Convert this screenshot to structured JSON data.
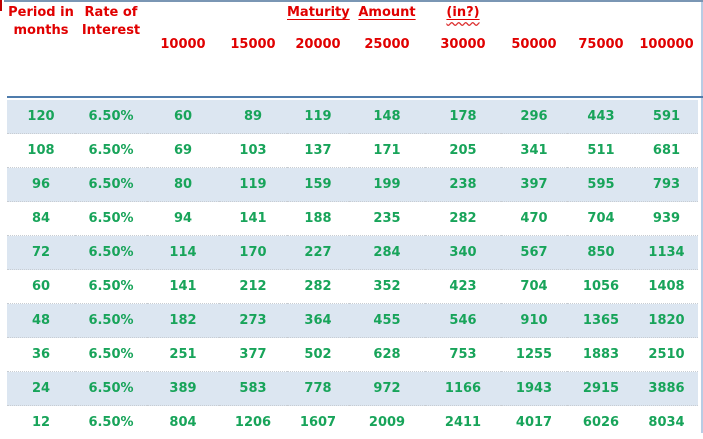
{
  "page": {
    "header": {
      "period_label": "Period in months",
      "rate_label": "Rate of Interest",
      "maturity_word": "Maturity",
      "amount_word": "Amount",
      "currency_note": "(in?)"
    },
    "colors": {
      "header_text_red": "#e00000",
      "value_text_green": "#18a45a",
      "row_band_blue": "#dce6f1",
      "header_separator_blue": "#4f7cac",
      "top_border_blue": "#7a96b4",
      "right_border_blue": "#b8cce4",
      "red_tick": "#c00000"
    }
  },
  "chart_data": {
    "type": "table",
    "title": "Maturity Amount (in?)",
    "columns": [
      "Period in months",
      "Rate of Interest",
      "10000",
      "15000",
      "20000",
      "25000",
      "30000",
      "50000",
      "75000",
      "100000"
    ],
    "amount_columns": [
      "10000",
      "15000",
      "20000",
      "25000",
      "30000",
      "50000",
      "75000",
      "100000"
    ],
    "rows": [
      {
        "period": "120",
        "rate": "6.50%",
        "values": [
          "60",
          "89",
          "119",
          "148",
          "178",
          "296",
          "443",
          "591"
        ]
      },
      {
        "period": "108",
        "rate": "6.50%",
        "values": [
          "69",
          "103",
          "137",
          "171",
          "205",
          "341",
          "511",
          "681"
        ]
      },
      {
        "period": "96",
        "rate": "6.50%",
        "values": [
          "80",
          "119",
          "159",
          "199",
          "238",
          "397",
          "595",
          "793"
        ]
      },
      {
        "period": "84",
        "rate": "6.50%",
        "values": [
          "94",
          "141",
          "188",
          "235",
          "282",
          "470",
          "704",
          "939"
        ]
      },
      {
        "period": "72",
        "rate": "6.50%",
        "values": [
          "114",
          "170",
          "227",
          "284",
          "340",
          "567",
          "850",
          "1134"
        ]
      },
      {
        "period": "60",
        "rate": "6.50%",
        "values": [
          "141",
          "212",
          "282",
          "352",
          "423",
          "704",
          "1056",
          "1408"
        ]
      },
      {
        "period": "48",
        "rate": "6.50%",
        "values": [
          "182",
          "273",
          "364",
          "455",
          "546",
          "910",
          "1365",
          "1820"
        ]
      },
      {
        "period": "36",
        "rate": "6.50%",
        "values": [
          "251",
          "377",
          "502",
          "628",
          "753",
          "1255",
          "1883",
          "2510"
        ]
      },
      {
        "period": "24",
        "rate": "6.50%",
        "values": [
          "389",
          "583",
          "778",
          "972",
          "1166",
          "1943",
          "2915",
          "3886"
        ]
      },
      {
        "period": "12",
        "rate": "6.50%",
        "values": [
          "804",
          "1206",
          "1607",
          "2009",
          "2411",
          "4017",
          "6026",
          "8034"
        ]
      }
    ]
  }
}
